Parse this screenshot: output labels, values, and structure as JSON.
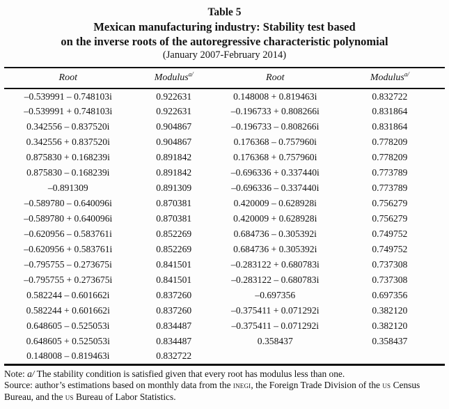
{
  "title": {
    "line1": "Table 5",
    "line2": "Mexican manufacturing industry: Stability test based",
    "line3": "on the inverse roots of the autoregressive characteristic polynomial",
    "subtitle": "(January 2007-February 2014)"
  },
  "table": {
    "headers": [
      "Root",
      "Modulus",
      "Root",
      "Modulus"
    ],
    "header_superscript": "a/",
    "rows": [
      [
        "–0.539991 – 0.748103i",
        "0.922631",
        "0.148008 + 0.819463i",
        "0.832722"
      ],
      [
        "–0.539991 + 0.748103i",
        "0.922631",
        "–0.196733 + 0.808266i",
        "0.831864"
      ],
      [
        "0.342556 – 0.837520i",
        "0.904867",
        "–0.196733 – 0.808266i",
        "0.831864"
      ],
      [
        "0.342556 + 0.837520i",
        "0.904867",
        "0.176368 – 0.757960i",
        "0.778209"
      ],
      [
        "0.875830 + 0.168239i",
        "0.891842",
        "0.176368 + 0.757960i",
        "0.778209"
      ],
      [
        "0.875830 – 0.168239i",
        "0.891842",
        "–0.696336 + 0.337440i",
        "0.773789"
      ],
      [
        "–0.891309",
        "0.891309",
        "–0.696336 – 0.337440i",
        "0.773789"
      ],
      [
        "–0.589780 – 0.640096i",
        "0.870381",
        "0.420009 – 0.628928i",
        "0.756279"
      ],
      [
        "–0.589780 + 0.640096i",
        "0.870381",
        "0.420009 + 0.628928i",
        "0.756279"
      ],
      [
        "–0.620956 – 0.583761i",
        "0.852269",
        "0.684736 – 0.305392i",
        "0.749752"
      ],
      [
        "–0.620956 + 0.583761i",
        "0.852269",
        "0.684736 + 0.305392i",
        "0.749752"
      ],
      [
        "–0.795755 – 0.273675i",
        "0.841501",
        "–0.283122 + 0.680783i",
        "0.737308"
      ],
      [
        "–0.795755 + 0.273675i",
        "0.841501",
        "–0.283122 – 0.680783i",
        "0.737308"
      ],
      [
        "0.582244 – 0.601662i",
        "0.837260",
        "–0.697356",
        "0.697356"
      ],
      [
        "0.582244 + 0.601662i",
        "0.837260",
        "–0.375411 + 0.071292i",
        "0.382120"
      ],
      [
        "0.648605 – 0.525053i",
        "0.834487",
        "–0.375411 – 0.071292i",
        "0.382120"
      ],
      [
        "0.648605 + 0.525053i",
        "0.834487",
        "0.358437",
        "0.358437"
      ],
      [
        "0.148008 – 0.819463i",
        "0.832722",
        "",
        ""
      ]
    ]
  },
  "notes": {
    "note": "Note: a/ The stability condition is satisfied given that every root has modulus less than one.",
    "source": "Source: author’s estimations based on monthly data from the INEGI, the Foreign Trade Division of the US Census Bureau, and the US Bureau of Labor Statistics."
  }
}
